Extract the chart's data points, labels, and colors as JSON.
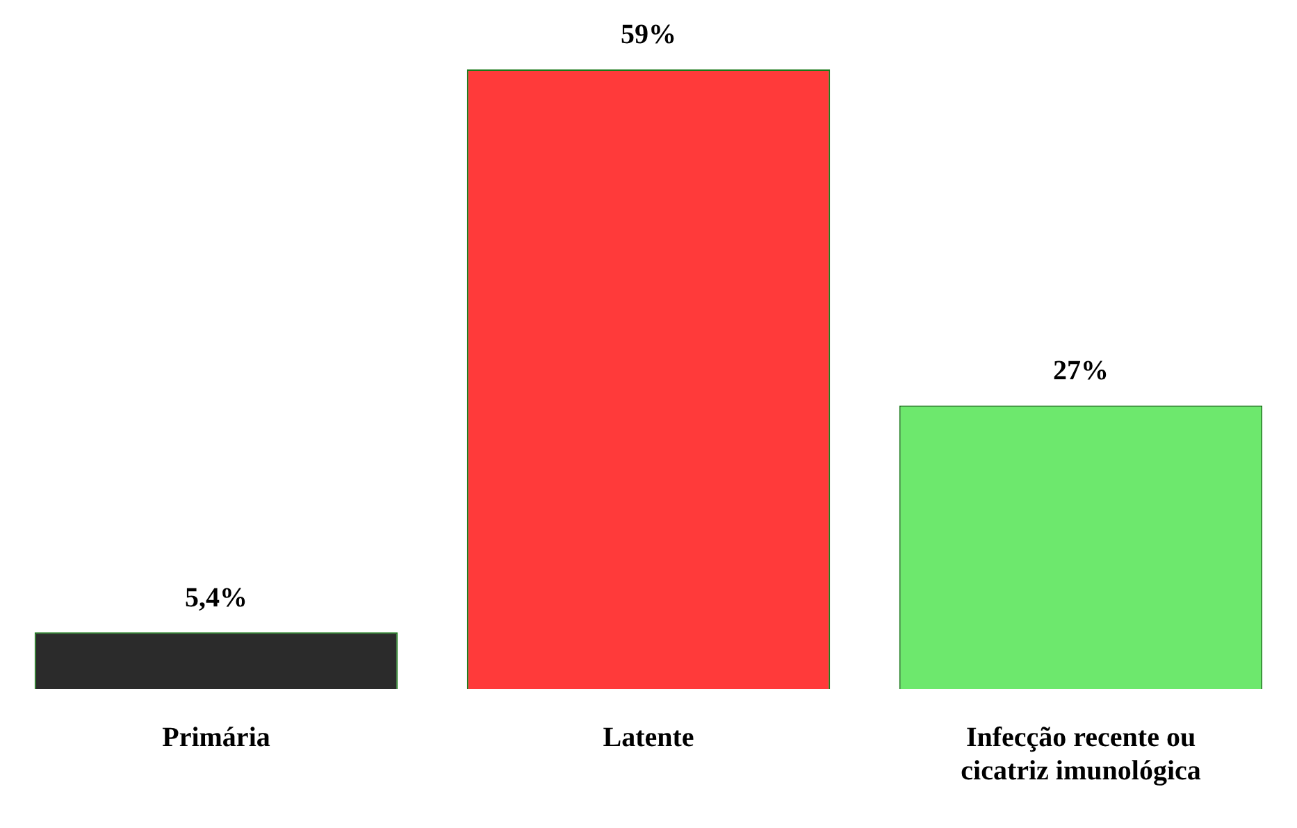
{
  "chart_data": {
    "type": "bar",
    "categories": [
      "Primária",
      "Latente",
      "Infecção recente ou cicatriz imunológica"
    ],
    "values": [
      5.4,
      59,
      27
    ],
    "colors": [
      "#2b2b2b",
      "#ff3a3a",
      "#6de86d"
    ],
    "value_labels": [
      "5,4%",
      "59%",
      "27%"
    ],
    "grid": false,
    "legend": false
  }
}
